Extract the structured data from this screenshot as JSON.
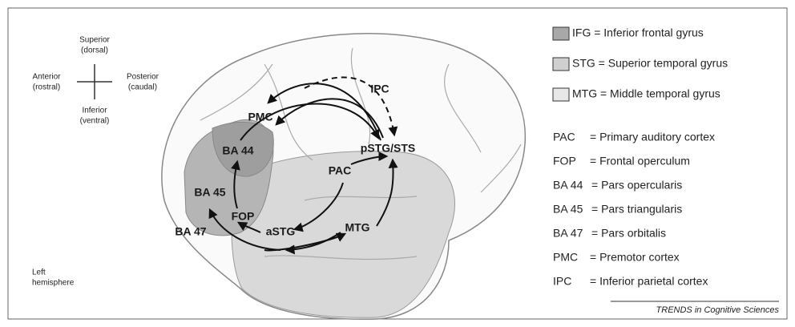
{
  "orientation": {
    "superior": "Superior",
    "superior_sub": "(dorsal)",
    "anterior": "Anterior",
    "anterior_sub": "(rostral)",
    "posterior": "Posterior",
    "posterior_sub": "(caudal)",
    "inferior": "Inferior",
    "inferior_sub": "(ventral)"
  },
  "hemisphere": [
    "Left",
    "hemisphere"
  ],
  "regions": [
    "IPC",
    "PMC",
    "BA 44",
    "pSTG/STS",
    "PAC",
    "BA 45",
    "FOP",
    "aSTG",
    "MTG",
    "BA 47"
  ],
  "legend": [
    "IFG = Inferior frontal gyrus",
    "STG = Superior temporal gyrus",
    "MTG = Middle temporal gyrus"
  ],
  "abbreviations": [
    {
      "abbr": "PAC",
      "text": "= Primary auditory cortex"
    },
    {
      "abbr": "FOP",
      "text": "= Frontal operculum"
    },
    {
      "abbr": "BA 44",
      "text": "= Pars opercularis"
    },
    {
      "abbr": "BA 45",
      "text": "= Pars triangularis"
    },
    {
      "abbr": "BA 47",
      "text": "= Pars orbitalis"
    },
    {
      "abbr": "PMC",
      "text": "= Premotor cortex"
    },
    {
      "abbr": "IPC",
      "text": "= Inferior parietal cortex"
    }
  ],
  "source": "TRENDS in Cognitive Sciences"
}
